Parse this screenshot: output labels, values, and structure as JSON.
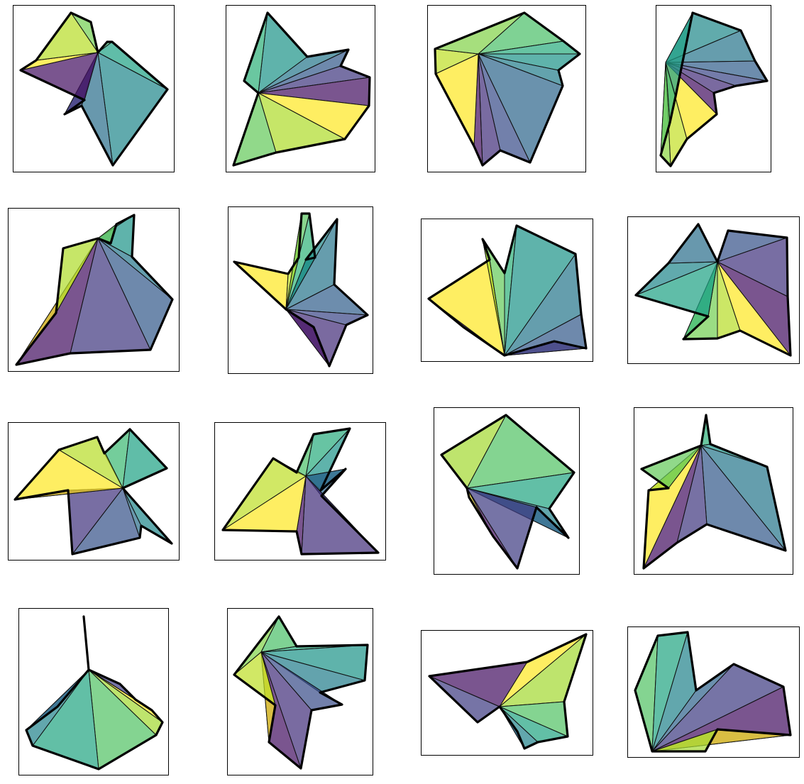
{
  "figure": {
    "description_visible": "",
    "palette": [
      "#440154",
      "#3b528b",
      "#21918c",
      "#5ec962",
      "#a0da39",
      "#fde725"
    ]
  },
  "panels": [
    {
      "id": 1
    },
    {
      "id": 2
    },
    {
      "id": 3
    },
    {
      "id": 4
    },
    {
      "id": 5
    },
    {
      "id": 6
    },
    {
      "id": 7
    },
    {
      "id": 8
    },
    {
      "id": 9
    },
    {
      "id": 10
    },
    {
      "id": 11
    },
    {
      "id": 12
    },
    {
      "id": 13
    },
    {
      "id": 14
    },
    {
      "id": 15
    },
    {
      "id": 16
    }
  ]
}
